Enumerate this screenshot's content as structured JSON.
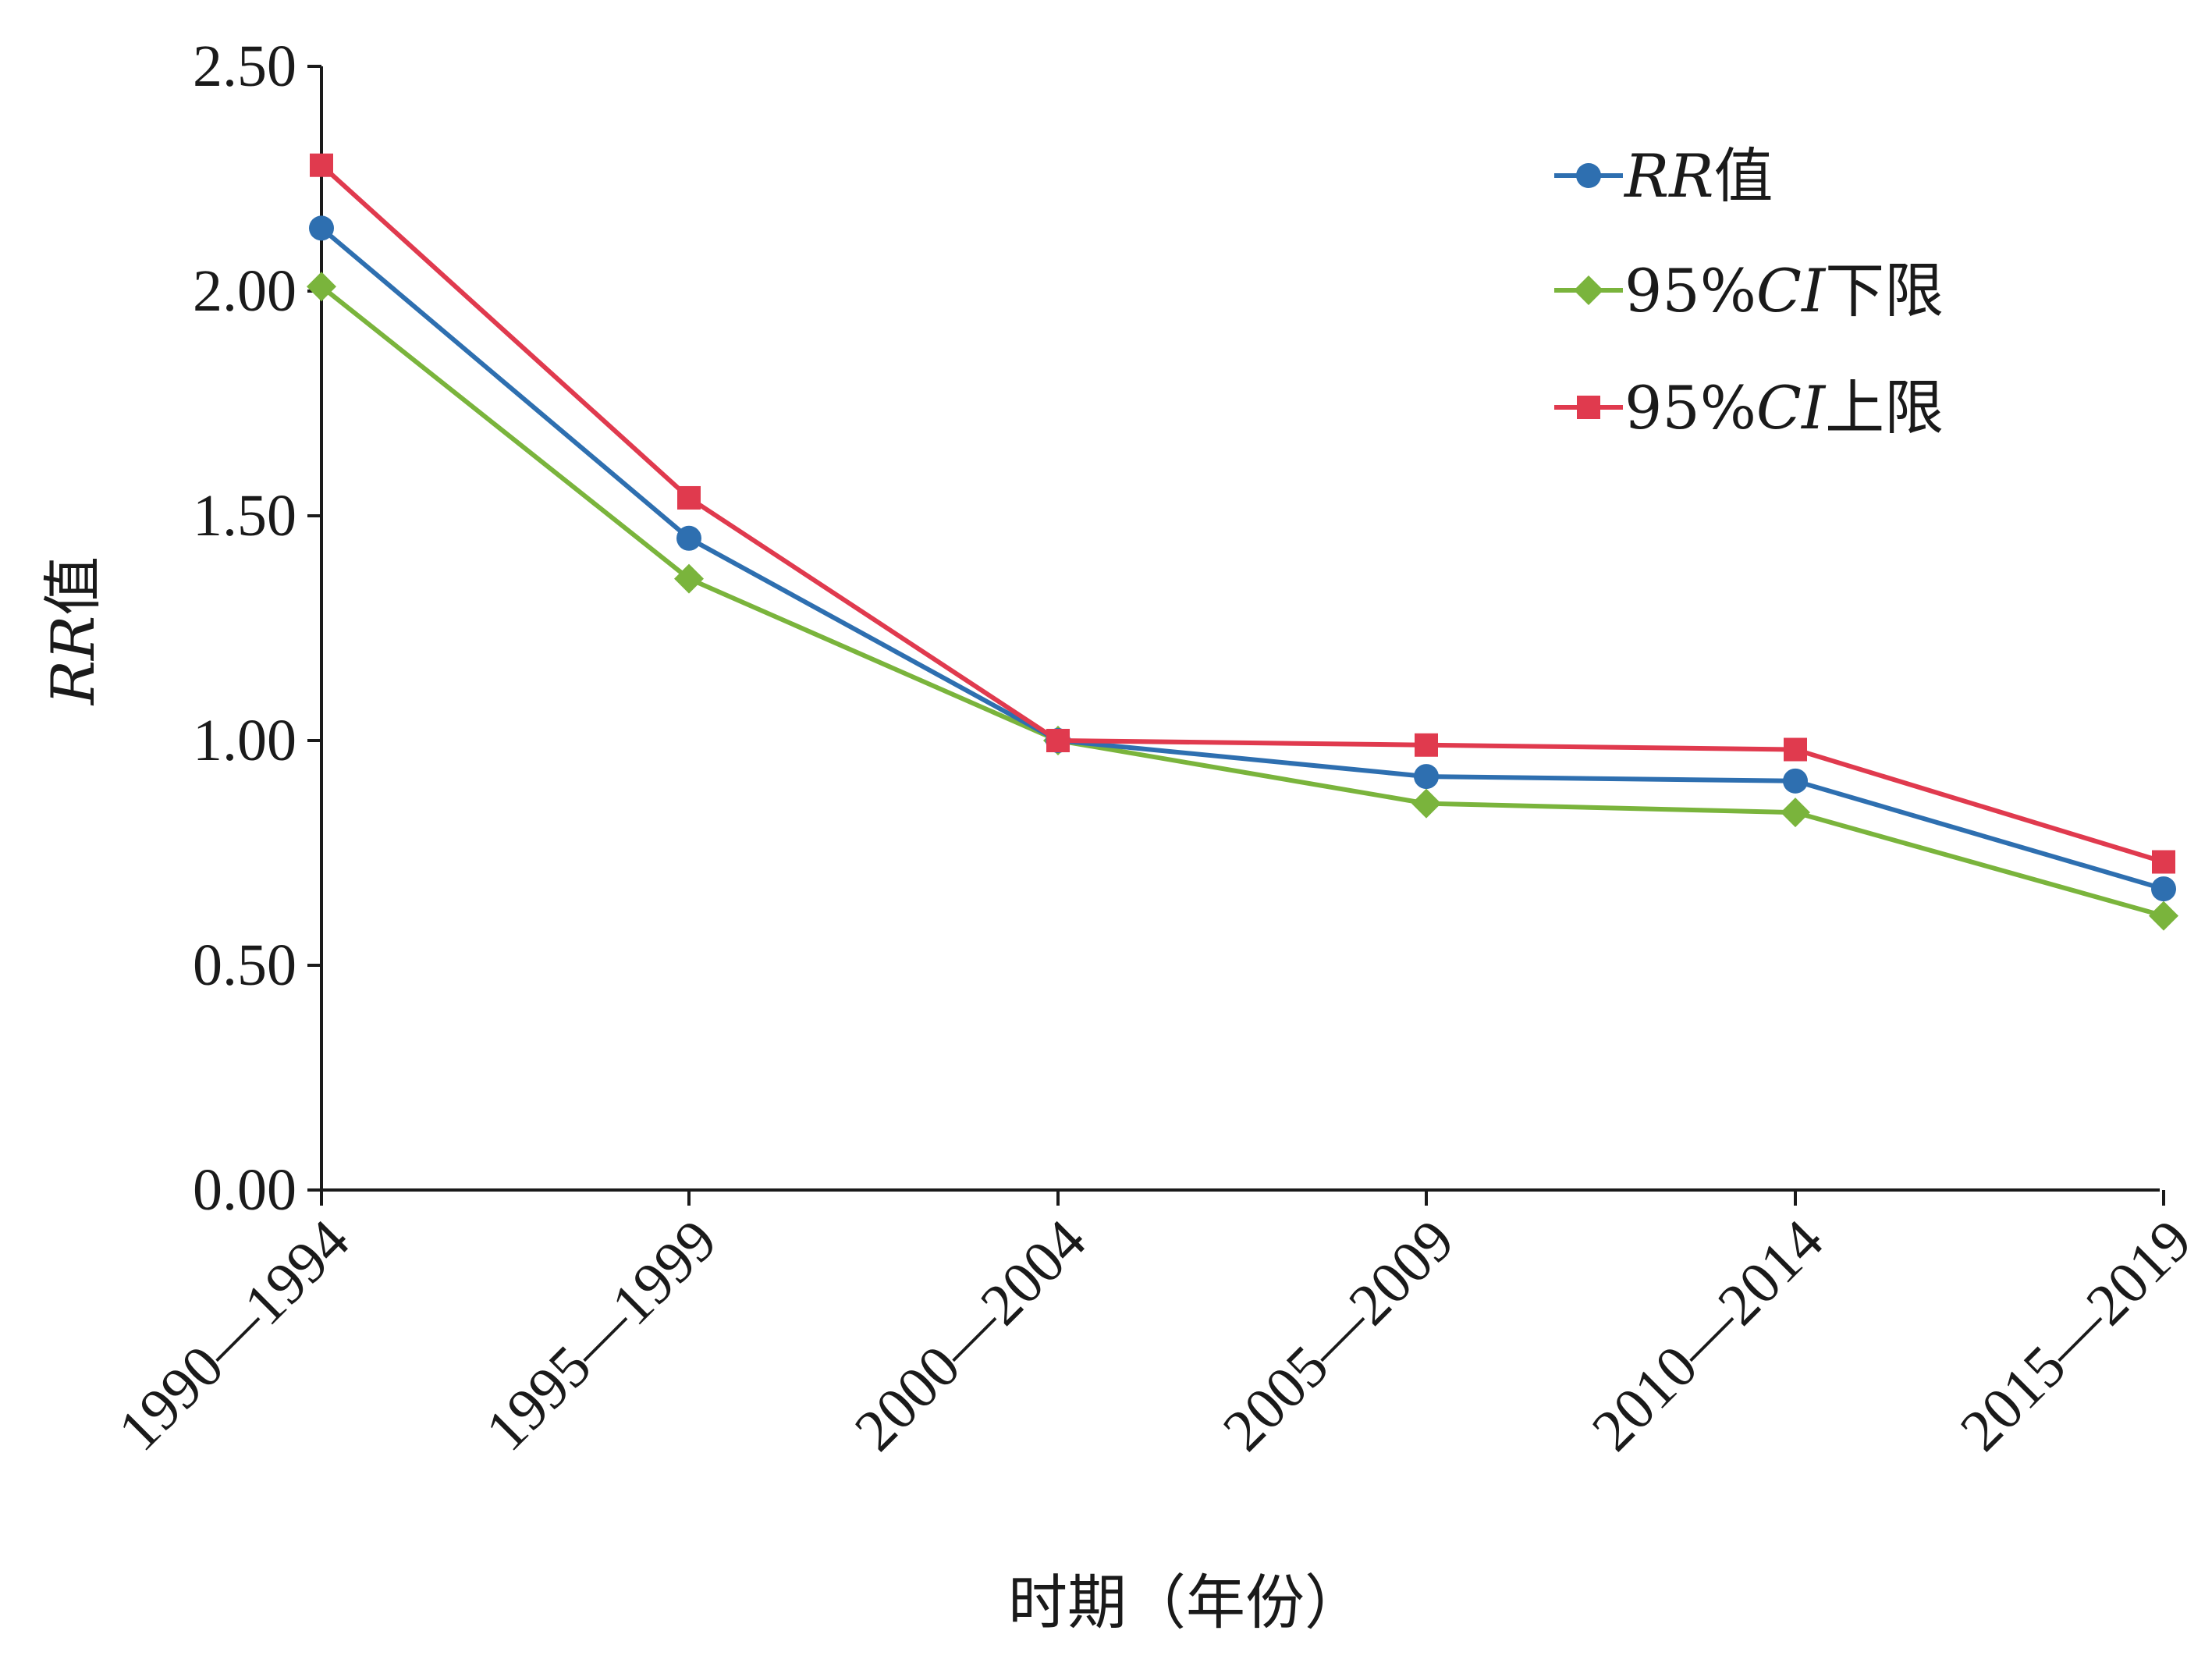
{
  "chart_data": {
    "type": "line",
    "title": "",
    "xlabel": "时期（年份）",
    "ylabel": "RR值",
    "ylabel_parts": [
      {
        "text": "RR",
        "italic": true
      },
      {
        "text": "值",
        "italic": false
      }
    ],
    "categories": [
      "1990—1994",
      "1995—1999",
      "2000—2004",
      "2005—2009",
      "2010—2014",
      "2015—2019"
    ],
    "yticks": [
      "0.00",
      "0.50",
      "1.00",
      "1.50",
      "2.00",
      "2.50"
    ],
    "ytick_values": [
      0,
      0.5,
      1.0,
      1.5,
      2.0,
      2.5
    ],
    "ylim": [
      0,
      2.5
    ],
    "grid": false,
    "legend_position": "top-right",
    "series": [
      {
        "name": "RR值",
        "name_parts": [
          {
            "text": "RR",
            "italic": true
          },
          {
            "text": "值",
            "italic": false
          }
        ],
        "color": "#2e6fb0",
        "marker": "circle",
        "values": [
          2.14,
          1.45,
          1.0,
          0.92,
          0.91,
          0.67
        ]
      },
      {
        "name": "95%CI下限",
        "name_parts": [
          {
            "text": "95%",
            "italic": false
          },
          {
            "text": "CI",
            "italic": true
          },
          {
            "text": "下限",
            "italic": false
          }
        ],
        "color": "#7ab43c",
        "marker": "diamond",
        "values": [
          2.01,
          1.36,
          1.0,
          0.86,
          0.84,
          0.61
        ]
      },
      {
        "name": "95%CI上限",
        "name_parts": [
          {
            "text": "95%",
            "italic": false
          },
          {
            "text": "CI",
            "italic": true
          },
          {
            "text": "上限",
            "italic": false
          }
        ],
        "color": "#e03a4e",
        "marker": "square",
        "values": [
          2.28,
          1.54,
          1.0,
          0.99,
          0.98,
          0.73
        ]
      }
    ]
  }
}
